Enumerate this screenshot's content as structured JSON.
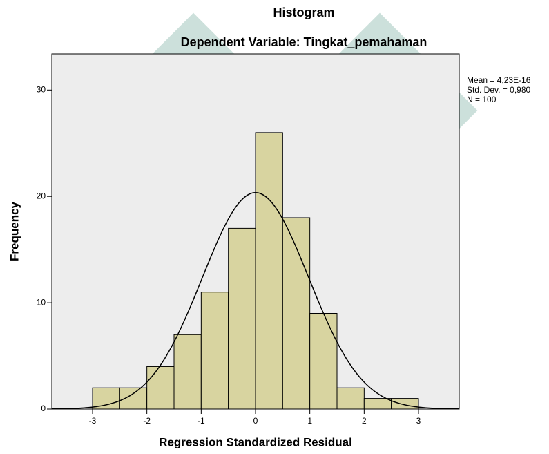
{
  "chart_data": {
    "type": "histogram",
    "title": "Histogram",
    "subtitle": "Dependent Variable: Tingkat_pemahaman",
    "x_label": "Regression Standardized Residual",
    "y_label": "Frequency",
    "bins": [
      -3,
      -2.5,
      -2,
      -1.5,
      -1,
      -0.5,
      0,
      0.5,
      1,
      1.5,
      2,
      2.5,
      3
    ],
    "values": [
      2,
      2,
      4,
      7,
      11,
      17,
      26,
      18,
      9,
      2,
      1,
      1
    ],
    "color": "#d8d4a0",
    "xlim": [
      -3.75,
      3.75
    ],
    "xticks": [
      -3,
      -2,
      -1,
      0,
      1,
      2,
      3
    ],
    "ylim": [
      0,
      33.4
    ],
    "yticks": [
      0,
      10,
      20,
      30
    ],
    "stats": [
      {
        "value": 4.23e-16,
        "label": "Mean = 4,23E-16"
      },
      {
        "value": 0.98,
        "label": "Std. Dev. = 0,980"
      },
      {
        "value": 100,
        "label": "N = 100"
      }
    ]
  }
}
